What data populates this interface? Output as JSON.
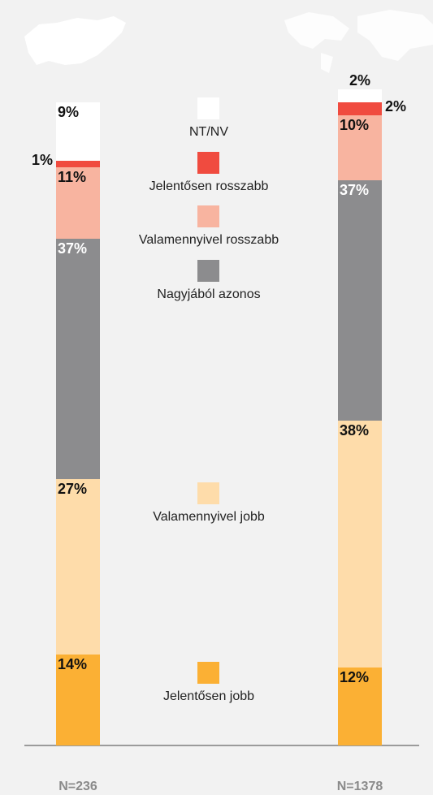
{
  "chart_data": {
    "type": "stacked-bar",
    "categories": [
      "N=236",
      "N=1378"
    ],
    "series": [
      {
        "name": "Jelentősen jobb",
        "color": "#fbb034",
        "values": [
          14,
          12
        ]
      },
      {
        "name": "Valamennyivel jobb",
        "color": "#fedcaa",
        "values": [
          27,
          38
        ]
      },
      {
        "name": "Nagyjából azonos",
        "color": "#8c8c8e",
        "values": [
          37,
          37
        ]
      },
      {
        "name": "Valamennyivel rosszabb",
        "color": "#f8b4a0",
        "values": [
          11,
          10
        ]
      },
      {
        "name": "Jelentősen rosszabb",
        "color": "#f04b3f",
        "values": [
          1,
          2
        ]
      },
      {
        "name": "NT/NV",
        "color": "#ffffff",
        "values": [
          9,
          2
        ]
      }
    ],
    "value_labels": [
      [
        "14%",
        "12%"
      ],
      [
        "27%",
        "38%"
      ],
      [
        "37%",
        "37%"
      ],
      [
        "11%",
        "10%"
      ],
      [
        "1%",
        "2%"
      ],
      [
        "9%",
        "2%"
      ]
    ],
    "ylim": [
      0,
      100
    ]
  }
}
